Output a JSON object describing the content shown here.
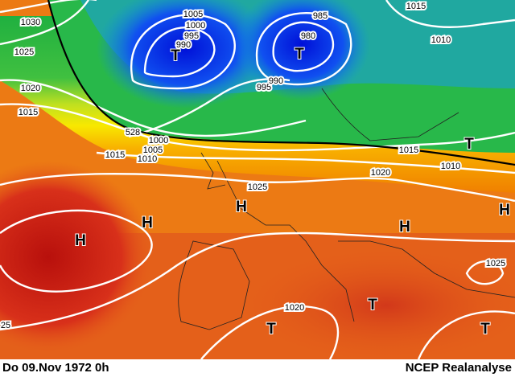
{
  "footer": {
    "left": "Do 09.Nov 1972  0h",
    "right": "NCEP Realanalyse"
  },
  "isobar_labels": [
    "1030",
    "1025",
    "1020",
    "1015",
    "1005",
    "1000",
    "995",
    "990",
    "985",
    "980",
    "995",
    "990",
    "1015",
    "1010",
    "528",
    "1000",
    "1005",
    "1010",
    "1015",
    "1015",
    "1010",
    "1020",
    "1025",
    "1020",
    "1025",
    "25"
  ],
  "pressure_centers": [
    "T",
    "T",
    "T",
    "T",
    "T",
    "T",
    "H",
    "H",
    "H",
    "H",
    "H"
  ]
}
